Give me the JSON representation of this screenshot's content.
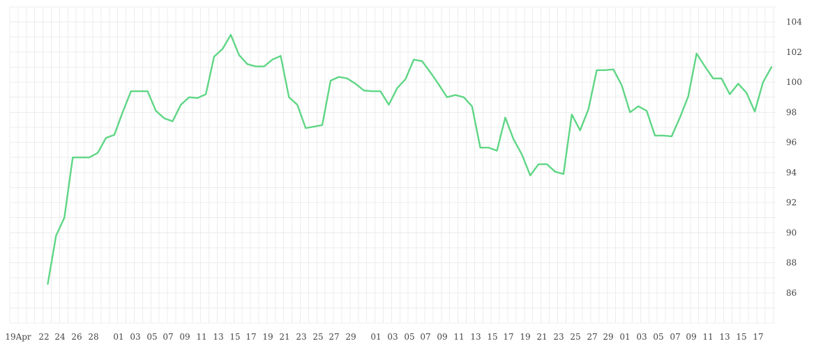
{
  "chart_data": {
    "type": "line",
    "title": "",
    "xlabel": "",
    "ylabel": "",
    "grid": true,
    "legend": "none",
    "ylim": [
      84,
      105
    ],
    "y_ticks": [
      86,
      88,
      90,
      92,
      94,
      96,
      98,
      100,
      102,
      104
    ],
    "x_tick_labels": [
      "19Apr",
      "22",
      "24",
      "26",
      "28",
      "01",
      "03",
      "05",
      "07",
      "09",
      "11",
      "13",
      "15",
      "17",
      "19",
      "21",
      "23",
      "25",
      "27",
      "29",
      "01",
      "03",
      "05",
      "07",
      "09",
      "11",
      "13",
      "15",
      "17",
      "19",
      "21",
      "23",
      "25",
      "27",
      "29",
      "01",
      "03",
      "05",
      "07",
      "09",
      "11",
      "13",
      "15",
      "17"
    ],
    "colors": {
      "line": "#5fd685",
      "grid": "#ececec",
      "text": "#444444"
    },
    "series": [
      {
        "values": [
          86.6,
          89.8,
          91.0,
          95.0,
          95.0,
          95.0,
          95.3,
          96.3,
          96.5,
          98.0,
          99.4,
          99.4,
          99.4,
          98.1,
          97.6,
          97.4,
          98.5,
          99.0,
          98.95,
          99.2,
          101.7,
          102.2,
          103.15,
          101.8,
          101.2,
          101.05,
          101.05,
          101.5,
          101.75,
          99.0,
          98.5,
          96.95,
          97.05,
          97.15,
          100.1,
          100.35,
          100.25,
          99.9,
          99.45,
          99.4,
          99.4,
          98.5,
          99.6,
          100.2,
          101.5,
          101.4,
          100.65,
          99.85,
          99.0,
          99.15,
          99.0,
          98.4,
          95.65,
          95.65,
          95.45,
          97.65,
          96.2,
          95.2,
          93.8,
          94.55,
          94.55,
          94.05,
          93.9,
          97.85,
          96.8,
          98.2,
          100.8,
          100.8,
          100.85,
          99.8,
          98.0,
          98.4,
          98.1,
          96.45,
          96.45,
          96.4,
          97.65,
          99.05,
          101.9,
          101.05,
          100.25,
          100.25,
          99.2,
          99.9,
          99.3,
          98.05,
          100.0,
          101.0
        ]
      }
    ]
  }
}
